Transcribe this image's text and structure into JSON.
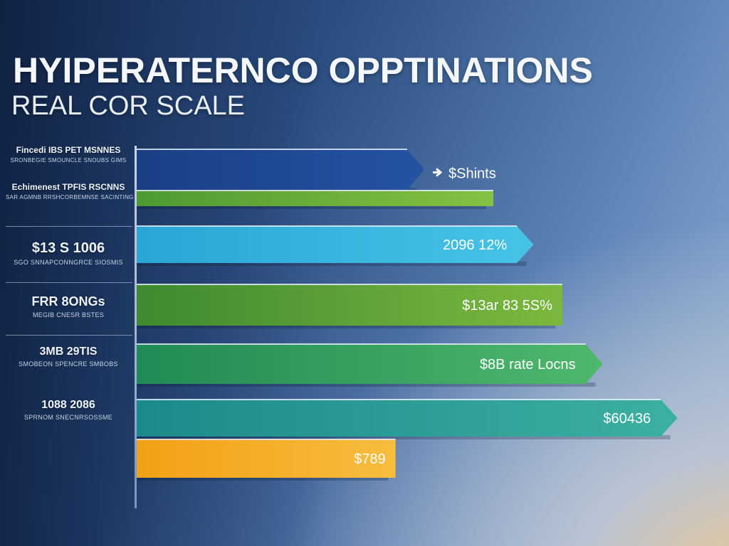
{
  "header": {
    "title": "HYIPERATERNCO OPPTINATIONS",
    "subtitle": "REAL COR SCALE"
  },
  "row_labels": [
    {
      "main": "Fincedi IBS PET MSNNES",
      "sub": "SRONBEGIE SMOUNCLE SNOUBS GIMS"
    },
    {
      "main": "Echimenest TPFIS RSCNNS",
      "sub": "SAR AGMNB RRSHCORBEMNSE SACINTING"
    },
    {
      "main": "$13 S 1006",
      "sub": "SGO SNNAPCONNGRCE SIOSMIS"
    },
    {
      "main": "FRR 8ONGs",
      "sub": "MEGIB CNESR BSTES"
    },
    {
      "main": "3MB 29TIS",
      "sub": "SMOBEON SPENCRE SMBOBS"
    },
    {
      "main": "1088 2086",
      "sub": "SPRNOM SNECNRSOSSME"
    }
  ],
  "chart_data": {
    "type": "bar",
    "orientation": "horizontal",
    "title": "HYIPERATERNCO OPPTINATIONS",
    "subtitle": "REAL COR SCALE",
    "xlim": [
      0,
      100
    ],
    "grid": false,
    "legend": "none",
    "bars": [
      {
        "value": 50,
        "label": "$Shints",
        "color_start": "#1a3f85",
        "color_end": "#2553a3",
        "arrow": true
      },
      {
        "value": 62,
        "label": "",
        "color_start": "#4e9a32",
        "color_end": "#84c143",
        "arrow": false
      },
      {
        "value": 69,
        "label": "2096 12%",
        "color_start": "#2aa5d4",
        "color_end": "#47c3e8",
        "arrow": true
      },
      {
        "value": 74,
        "label": "$13ar 83 5S%",
        "color_start": "#3f8a30",
        "color_end": "#7cb83f",
        "arrow": false
      },
      {
        "value": 81,
        "label": "$8B rate Locns",
        "color_start": "#228a55",
        "color_end": "#4fb86c",
        "arrow": true
      },
      {
        "value": 94,
        "label": "$60436",
        "color_start": "#1c8a8c",
        "color_end": "#3cb0a0",
        "arrow": true
      },
      {
        "value": 45,
        "label": "$789",
        "color_start": "#f2a016",
        "color_end": "#f7bd3e",
        "arrow": false
      }
    ]
  },
  "colors": {
    "background_dark": "#1d3663",
    "background_light": "#8fb0d6",
    "axis": "#c9d6ea",
    "text": "#f4f7fb"
  }
}
